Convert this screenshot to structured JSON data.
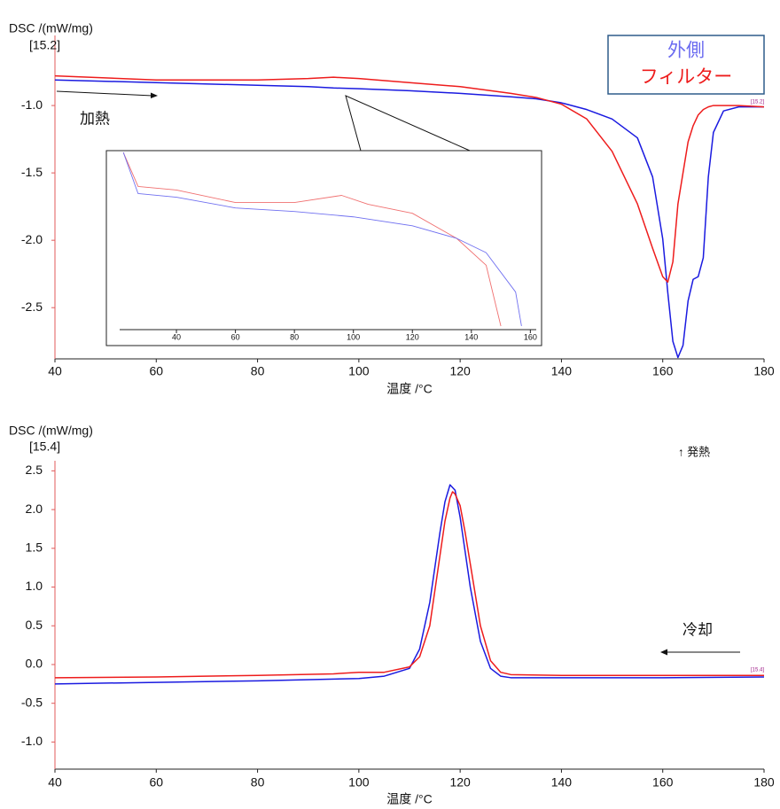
{
  "chart_data": [
    {
      "type": "line",
      "ylabel": "DSC /(mW/mg)",
      "yunit": "[15.2]",
      "xlabel": "温度 /°C",
      "xlim": [
        40,
        180
      ],
      "ylim": [
        -2.88,
        -0.48
      ],
      "xticks": [
        40,
        60,
        80,
        100,
        120,
        140,
        160,
        180
      ],
      "yticks": [
        {
          "value": -1.0,
          "label": "-1.0"
        },
        -1.5,
        {
          "value": -2.0,
          "label": "-2.0"
        },
        -2.5
      ],
      "grid": false,
      "legend": "upper right",
      "annotations": [
        {
          "text": "加熱"
        },
        {
          "text": "[15.2]"
        }
      ],
      "series": [
        {
          "name": "外側",
          "color": "#1a1ae0",
          "x": [
            40,
            60,
            80,
            90,
            95,
            100,
            110,
            120,
            130,
            135,
            140,
            145,
            150,
            155,
            158,
            160,
            161,
            162,
            163,
            164,
            165,
            166,
            167,
            168,
            169,
            170,
            172,
            175,
            180
          ],
          "values": [
            -0.81,
            -0.83,
            -0.85,
            -0.86,
            -0.87,
            -0.875,
            -0.89,
            -0.91,
            -0.935,
            -0.95,
            -0.98,
            -1.03,
            -1.1,
            -1.24,
            -1.53,
            -1.99,
            -2.39,
            -2.75,
            -2.87,
            -2.78,
            -2.45,
            -2.29,
            -2.27,
            -2.13,
            -1.53,
            -1.2,
            -1.04,
            -1.01,
            -1.01
          ]
        },
        {
          "name": "フィルター",
          "color": "#ee1c1c",
          "x": [
            40,
            60,
            80,
            90,
            95,
            100,
            110,
            120,
            130,
            135,
            140,
            145,
            150,
            155,
            158,
            160,
            161,
            162,
            163,
            164,
            165,
            166,
            167,
            168,
            169,
            170,
            172,
            175,
            180
          ],
          "values": [
            -0.78,
            -0.81,
            -0.81,
            -0.8,
            -0.79,
            -0.8,
            -0.83,
            -0.86,
            -0.91,
            -0.94,
            -0.99,
            -1.1,
            -1.34,
            -1.73,
            -2.06,
            -2.27,
            -2.31,
            -2.16,
            -1.73,
            -1.5,
            -1.27,
            -1.15,
            -1.07,
            -1.03,
            -1.01,
            -1.0,
            -1.0,
            -1.0,
            -1.01
          ]
        }
      ]
    },
    {
      "type": "line",
      "ylabel": "DSC /(mW/mg)",
      "yunit": "[15.4]",
      "xlabel": "温度 /°C",
      "xlim": [
        40,
        180
      ],
      "ylim": [
        -1.35,
        2.63
      ],
      "xticks": [
        40,
        60,
        80,
        100,
        120,
        140,
        160,
        180
      ],
      "yticks": [
        2.5,
        {
          "value": 2.0,
          "label": "2.0"
        },
        1.5,
        {
          "value": 1.0,
          "label": "1.0"
        },
        0.5,
        {
          "value": 0.0,
          "label": "0.0"
        },
        -0.5,
        {
          "value": -1.0,
          "label": "-1.0"
        }
      ],
      "grid": false,
      "annotations": [
        {
          "text": "↑ 発熱"
        },
        {
          "text": "冷却"
        },
        {
          "text": "[15.4]"
        }
      ],
      "series": [
        {
          "color": "#1a1ae0",
          "x": [
            40,
            60,
            80,
            100,
            105,
            110,
            112,
            114,
            116,
            117,
            118,
            119,
            120,
            121,
            122,
            124,
            126,
            128,
            130,
            140,
            160,
            180
          ],
          "values": [
            -0.25,
            -0.23,
            -0.21,
            -0.18,
            -0.15,
            -0.05,
            0.2,
            0.8,
            1.7,
            2.1,
            2.32,
            2.25,
            1.9,
            1.45,
            1.0,
            0.3,
            -0.05,
            -0.15,
            -0.17,
            -0.17,
            -0.17,
            -0.16
          ]
        },
        {
          "color": "#ee1c1c",
          "x": [
            40,
            60,
            80,
            95,
            100,
            105,
            110,
            112,
            114,
            116,
            117,
            118,
            118.5,
            119,
            120,
            121,
            122,
            124,
            126,
            128,
            130,
            140,
            160,
            180
          ],
          "values": [
            -0.17,
            -0.16,
            -0.14,
            -0.12,
            -0.1,
            -0.1,
            -0.03,
            0.1,
            0.5,
            1.4,
            1.85,
            2.15,
            2.23,
            2.2,
            2.05,
            1.7,
            1.3,
            0.5,
            0.05,
            -0.1,
            -0.13,
            -0.14,
            -0.14,
            -0.14
          ]
        }
      ]
    },
    {
      "type": "line",
      "xlim": [
        20.75,
        162
      ],
      "ylim": [
        0,
        100
      ],
      "xticks": [
        40,
        60,
        80,
        100,
        120,
        140,
        160
      ],
      "series": [
        {
          "color": "#f07070",
          "x": [
            22,
            27,
            40,
            60,
            80,
            96,
            105,
            120,
            135,
            145,
            150
          ],
          "values": [
            99,
            80,
            78,
            71,
            71,
            75,
            70,
            65,
            51,
            36,
            2
          ]
        },
        {
          "color": "#7070f0",
          "x": [
            22,
            27,
            40,
            60,
            80,
            100,
            120,
            135,
            145,
            155,
            157
          ],
          "values": [
            99,
            76,
            74,
            68,
            66,
            63,
            58,
            51,
            43,
            21,
            2
          ]
        }
      ]
    }
  ]
}
